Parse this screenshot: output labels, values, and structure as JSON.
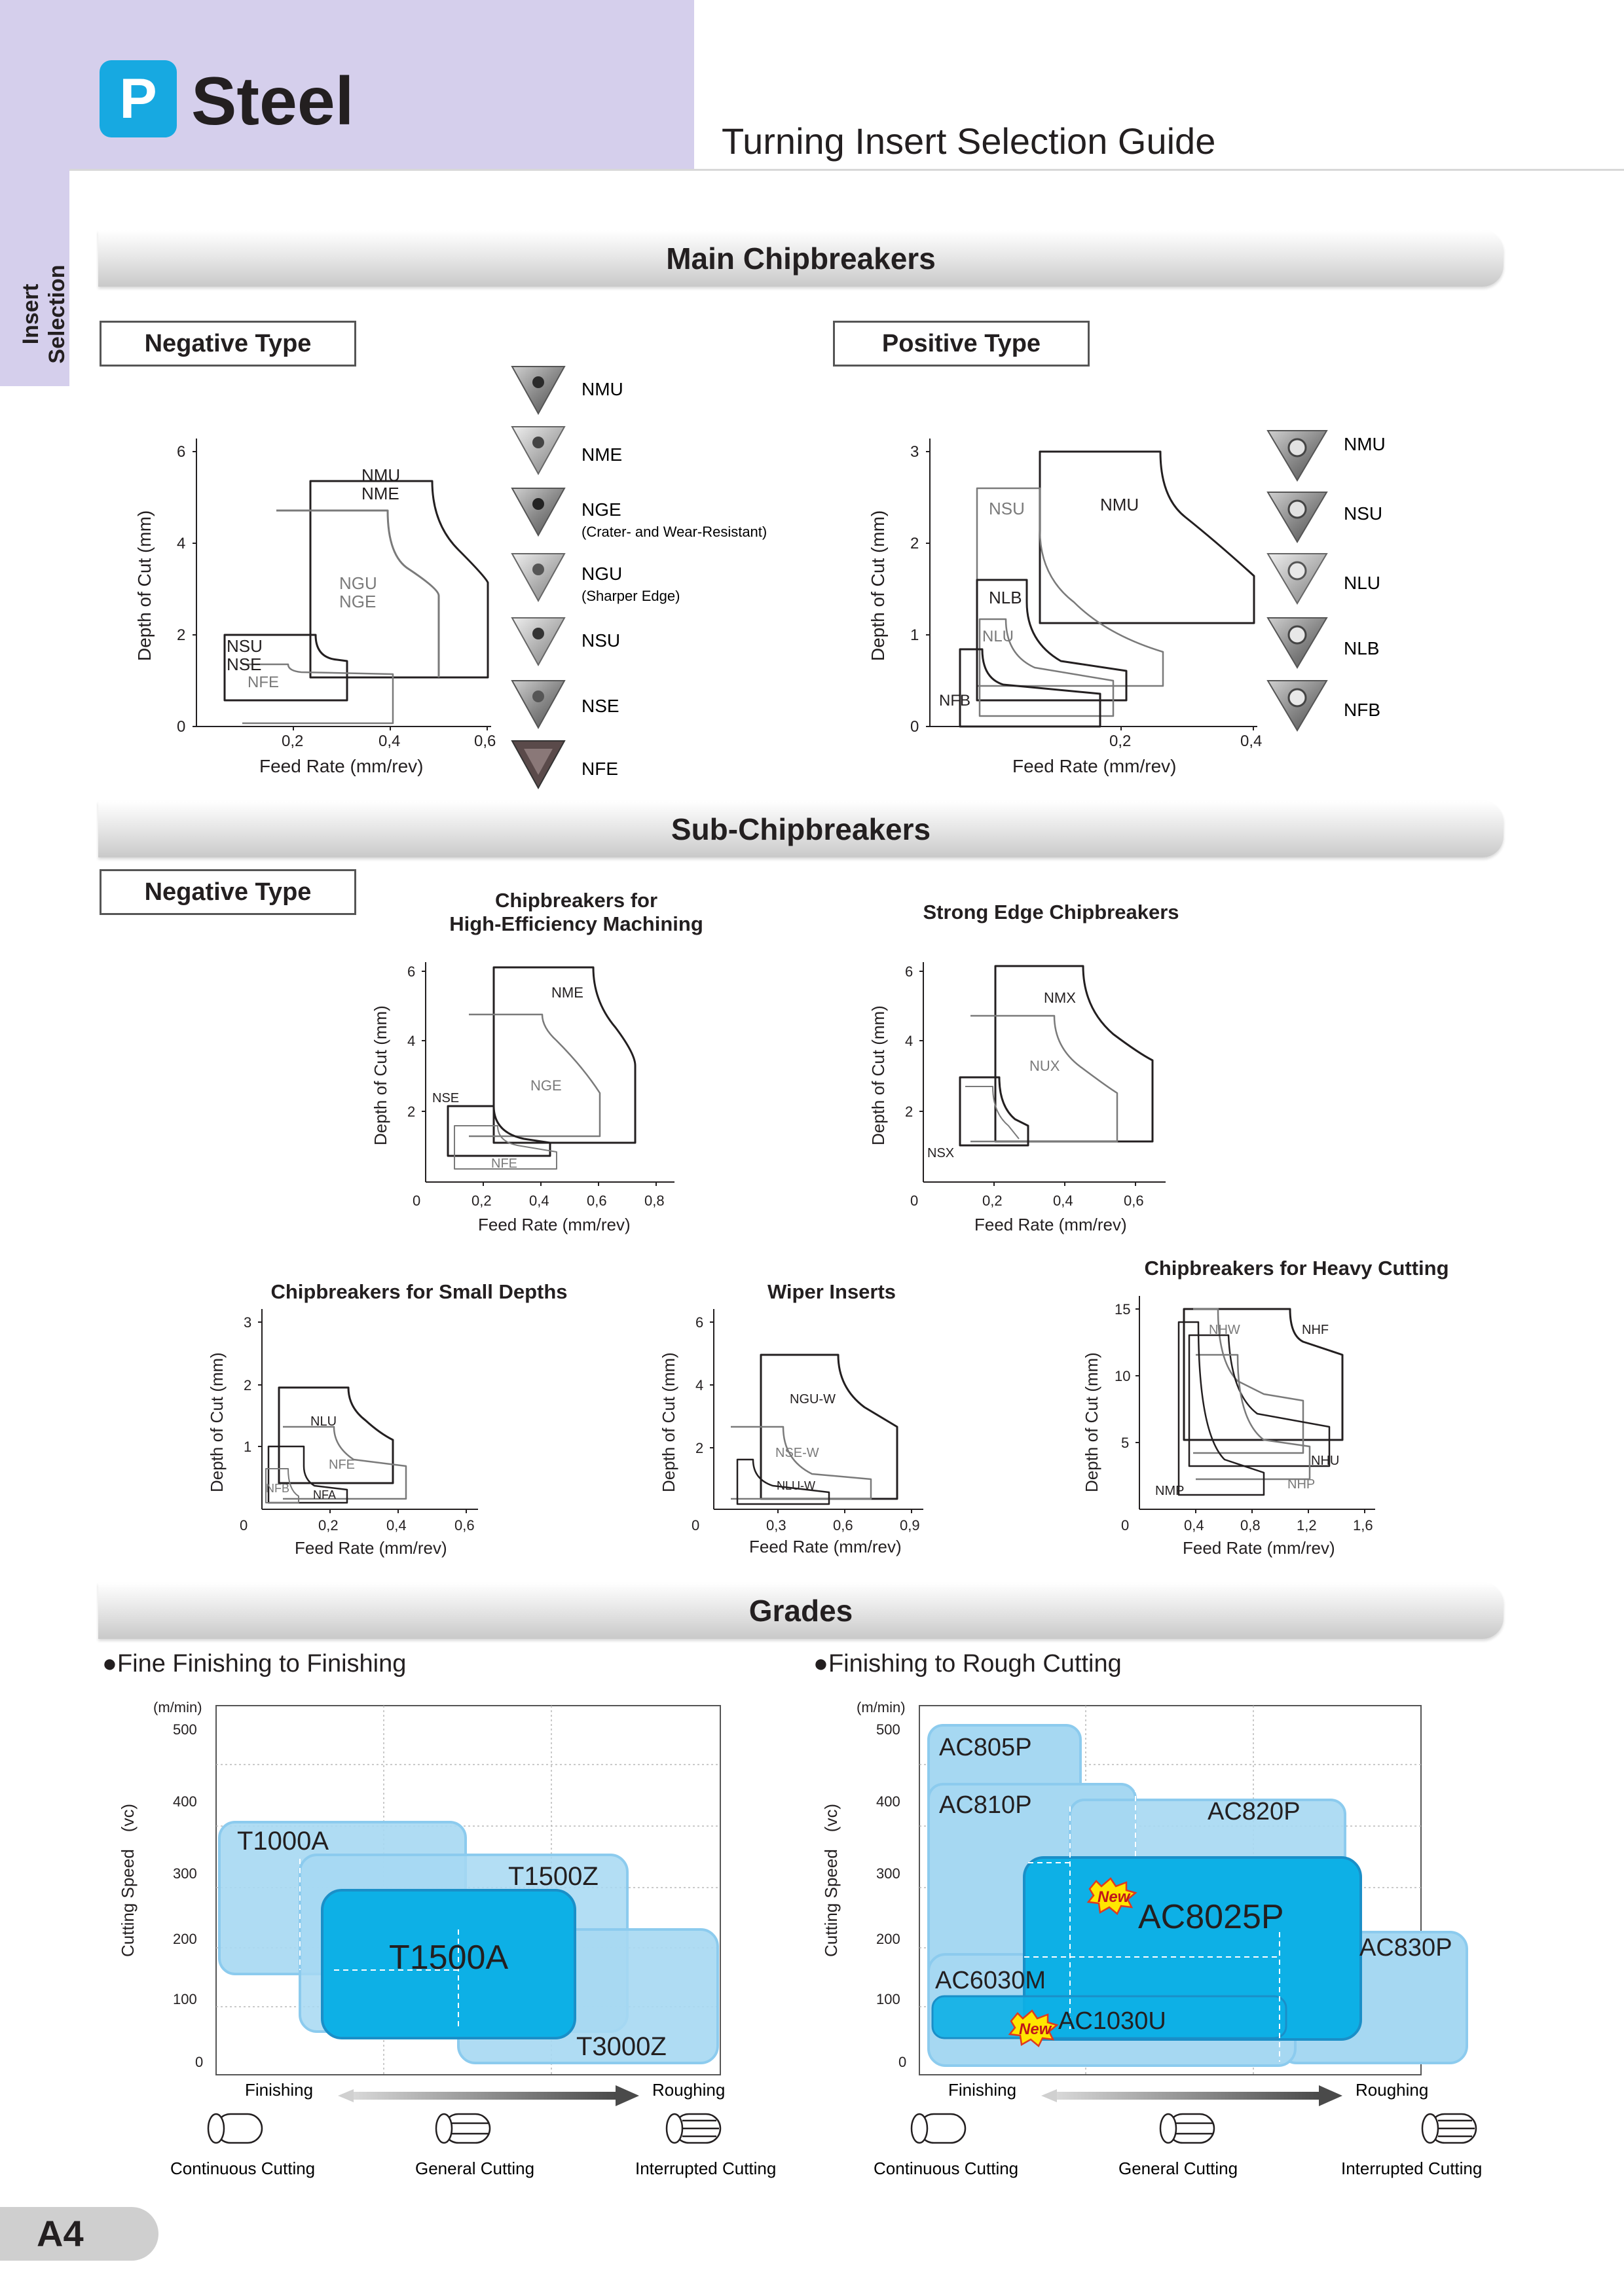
{
  "header": {
    "badge": "P",
    "material": "Steel",
    "guide_title": "Turning Insert Selection Guide"
  },
  "side_tab": {
    "line1": "Insert",
    "line2": "Selection"
  },
  "sections": {
    "main": "Main Chipbreakers",
    "sub": "Sub-Chipbreakers",
    "grades": "Grades"
  },
  "types": {
    "negative": "Negative Type",
    "positive": "Positive Type"
  },
  "axis": {
    "depth": "Depth of Cut (mm)",
    "feed": "Feed Rate (mm/rev)"
  },
  "neg_chart": {
    "xticks": [
      "0,2",
      "0,4",
      "0,6"
    ],
    "yticks": [
      "0",
      "2",
      "4",
      "6"
    ],
    "labels": {
      "nmu_nme": [
        "NMU",
        "NME"
      ],
      "ngu_nge": [
        "NGU",
        "NGE"
      ],
      "nsu_nse": [
        "NSU",
        "NSE"
      ],
      "nfe": "NFE"
    }
  },
  "neg_inserts": [
    {
      "name": "NMU",
      "note": ""
    },
    {
      "name": "NME",
      "note": ""
    },
    {
      "name": "NGE",
      "note": "(Crater- and Wear-Resistant)"
    },
    {
      "name": "NGU",
      "note": "(Sharper Edge)"
    },
    {
      "name": "NSU",
      "note": ""
    },
    {
      "name": "NSE",
      "note": ""
    },
    {
      "name": "NFE",
      "note": ""
    }
  ],
  "pos_chart": {
    "xticks": [
      "0,2",
      "0,4"
    ],
    "yticks": [
      "0",
      "1",
      "2",
      "3"
    ],
    "labels": {
      "nsu": "NSU",
      "nmu": "NMU",
      "nlb": "NLB",
      "nlu": "NLU",
      "nfb": "NFB"
    }
  },
  "pos_inserts": [
    {
      "name": "NMU"
    },
    {
      "name": "NSU"
    },
    {
      "name": "NLU"
    },
    {
      "name": "NLB"
    },
    {
      "name": "NFB"
    }
  ],
  "sub_charts": {
    "high_eff": {
      "title": [
        "Chipbreakers for",
        "High-Efficiency Machining"
      ],
      "xticks": [
        "0",
        "0,2",
        "0,4",
        "0,6",
        "0,8"
      ],
      "yticks": [
        "2",
        "4",
        "6"
      ],
      "labels": {
        "nme": "NME",
        "nge": "NGE",
        "nse": "NSE",
        "nfe": "NFE"
      }
    },
    "strong": {
      "title": "Strong Edge Chipbreakers",
      "xticks": [
        "0",
        "0,2",
        "0,4",
        "0,6"
      ],
      "yticks": [
        "2",
        "4",
        "6"
      ],
      "labels": {
        "nmx": "NMX",
        "nux": "NUX",
        "nsx": "NSX"
      }
    },
    "small": {
      "title": "Chipbreakers for Small Depths",
      "xticks": [
        "0",
        "0,2",
        "0,4",
        "0,6"
      ],
      "yticks": [
        "1",
        "2",
        "3"
      ],
      "labels": {
        "nlu": "NLU",
        "nfe": "NFE",
        "nfb": "NFB",
        "nfa": "NFA"
      }
    },
    "wiper": {
      "title": "Wiper Inserts",
      "xticks": [
        "0",
        "0,3",
        "0,6",
        "0,9"
      ],
      "yticks": [
        "2",
        "4",
        "6"
      ],
      "labels": {
        "ngu": "NGU-W",
        "nse": "NSE-W",
        "nlu": "NLU-W"
      }
    },
    "heavy": {
      "title": "Chipbreakers for Heavy Cutting",
      "xticks": [
        "0",
        "0,4",
        "0,8",
        "1,2",
        "1,6"
      ],
      "yticks": [
        "5",
        "10",
        "15"
      ],
      "labels": {
        "nhw": "NHW",
        "nhf": "NHF",
        "nhu": "NHU",
        "nhp": "NHP",
        "nmp": "NMP"
      }
    }
  },
  "grades": {
    "fine_title": "Fine Finishing to Finishing",
    "rough_title": "Finishing to Rough Cutting",
    "unit": "(m/min)",
    "speed_label": "Cutting Speed　(vc)",
    "yticks": [
      "0",
      "100",
      "200",
      "300",
      "400",
      "500"
    ],
    "finishing": "Finishing",
    "roughing": "Roughing",
    "fine_grades": {
      "t1000a": "T1000A",
      "t1500z": "T1500Z",
      "t1500a": "T1500A",
      "t3000z": "T3000Z"
    },
    "rough_grades": {
      "ac805p": "AC805P",
      "ac810p": "AC810P",
      "ac820p": "AC820P",
      "ac8025p": "AC8025P",
      "ac830p": "AC830P",
      "ac6030m": "AC6030M",
      "ac1030u": "AC1030U"
    },
    "new_badge": "New",
    "cutting": {
      "continuous": "Continuous Cutting",
      "general": "General Cutting",
      "interrupted": "Interrupted Cutting"
    },
    "colors": {
      "light": "#a6d8f2",
      "mid": "#8ecfee",
      "dark": "#0db0e6",
      "border": "#3aa9de"
    }
  },
  "page_number": "A4"
}
